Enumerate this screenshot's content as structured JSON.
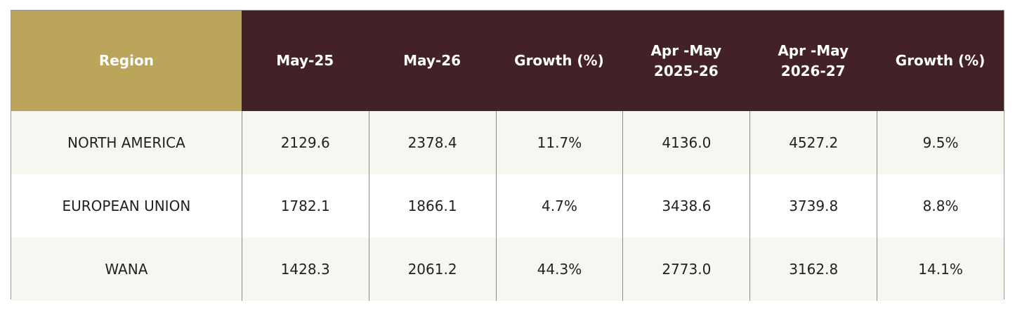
{
  "table": {
    "header": [
      "Region",
      "May-25",
      "May-26",
      "Growth (%)",
      "Apr -May\n2025-26",
      "Apr -May\n2026-27",
      "Growth (%)"
    ],
    "rows": [
      [
        "NORTH AMERICA",
        "2129.6",
        "2378.4",
        "11.7%",
        "4136.0",
        "4527.2",
        "9.5%"
      ],
      [
        "EUROPEAN UNION",
        "1782.1",
        "1866.1",
        "4.7%",
        "3438.6",
        "3739.8",
        "8.8%"
      ],
      [
        "WANA",
        "1428.3",
        "2061.2",
        "44.3%",
        "2773.0",
        "3162.8",
        "14.1%"
      ]
    ]
  }
}
